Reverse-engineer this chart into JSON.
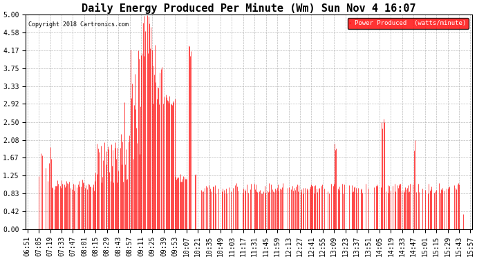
{
  "title": "Daily Energy Produced Per Minute (Wm) Sun Nov 4 16:07",
  "copyright": "Copyright 2018 Cartronics.com",
  "legend_label": "Power Produced  (watts/minute)",
  "legend_bg": "#ff0000",
  "legend_text_color": "#ffffff",
  "ylabel_values": [
    0.0,
    0.42,
    0.83,
    1.25,
    1.67,
    2.08,
    2.5,
    2.92,
    3.33,
    3.75,
    4.17,
    4.58,
    5.0
  ],
  "ylim": [
    0.0,
    5.0
  ],
  "line_color": "#ff0000",
  "dark_line_color": "#333333",
  "background_color": "#ffffff",
  "grid_color": "#aaaaaa",
  "title_fontsize": 11,
  "tick_fontsize": 7,
  "x_labels": [
    "06:51",
    "07:05",
    "07:19",
    "07:33",
    "07:47",
    "08:01",
    "08:15",
    "08:29",
    "08:43",
    "08:57",
    "09:11",
    "09:25",
    "09:39",
    "09:53",
    "10:07",
    "10:21",
    "10:35",
    "10:49",
    "11:03",
    "11:17",
    "11:31",
    "11:45",
    "11:59",
    "12:13",
    "12:27",
    "12:41",
    "12:55",
    "13:09",
    "13:23",
    "13:37",
    "13:51",
    "14:05",
    "14:19",
    "14:33",
    "14:47",
    "15:01",
    "15:15",
    "15:29",
    "15:43",
    "15:57"
  ]
}
